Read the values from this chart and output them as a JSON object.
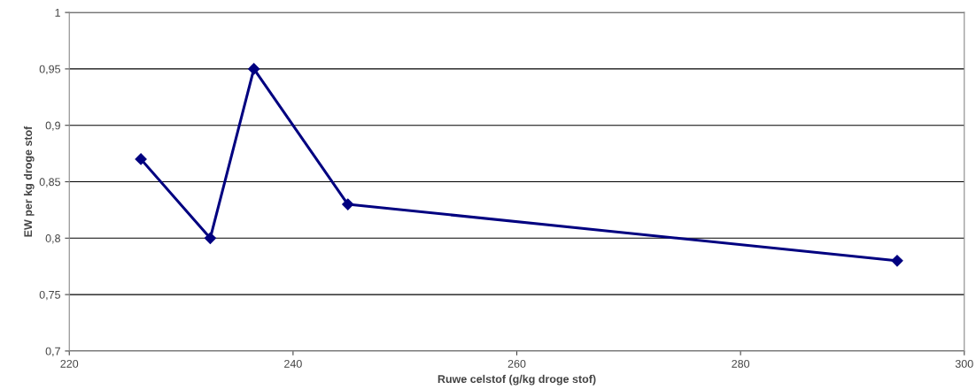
{
  "chart_data": {
    "type": "line",
    "xlabel": "Ruwe celstof (g/kg droge stof)",
    "ylabel": "EW per kg droge stof",
    "x": [
      226.4,
      232.6,
      236.5,
      244.9,
      294.0
    ],
    "series": [
      {
        "color": "#000080",
        "values": [
          0.87,
          0.8,
          0.95,
          0.83,
          0.78
        ]
      }
    ],
    "xlim": [
      220,
      300
    ],
    "xticks": [
      220,
      240,
      260,
      280,
      300
    ],
    "ylim": [
      0.7,
      1
    ],
    "yticks": [
      {
        "value": 0.7,
        "label": "0,7"
      },
      {
        "value": 0.75,
        "label": "0,75"
      },
      {
        "value": 0.8,
        "label": "0,8"
      },
      {
        "value": 0.85,
        "label": "0,85"
      },
      {
        "value": 0.9,
        "label": "0,9"
      },
      {
        "value": 0.95,
        "label": "0,95"
      },
      {
        "value": 1,
        "label": "1"
      }
    ],
    "grid": "y",
    "marker": "diamond",
    "line_style": "solid",
    "legend": false
  }
}
